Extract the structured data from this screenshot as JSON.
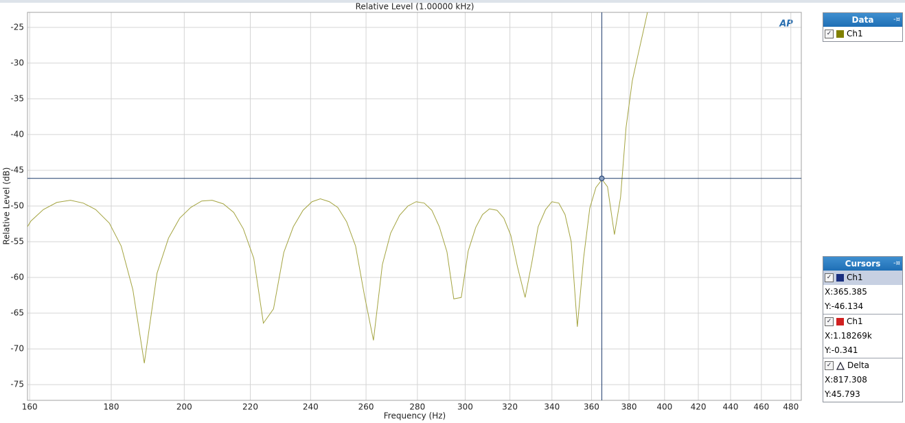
{
  "chart_data": {
    "type": "line",
    "title": "Relative Level (1.00000 kHz)",
    "x_label": "Frequency (Hz)",
    "y_label": "Relative Level (dB)",
    "log_x": true,
    "grid": true,
    "xlim": [
      159.5,
      487.3
    ],
    "ylim": [
      -77.2,
      -22.9
    ],
    "xticks": [
      160,
      180,
      200,
      220,
      240,
      260,
      280,
      300,
      320,
      340,
      360,
      380,
      400,
      420,
      440,
      460,
      480
    ],
    "yticks": [
      -25,
      -30,
      -35,
      -40,
      -45,
      -50,
      -55,
      -60,
      -65,
      -70,
      -75
    ],
    "x": [
      159.5,
      160.3,
      163.2,
      166.4,
      169.7,
      172.9,
      176.0,
      179.5,
      182.6,
      185.7,
      188.8,
      192.3,
      195.5,
      198.7,
      201.9,
      205.1,
      208.2,
      211.6,
      214.8,
      217.8,
      221.1,
      224.2,
      227.5,
      230.9,
      234.1,
      237.4,
      240.5,
      243.4,
      246.6,
      249.6,
      252.8,
      256.1,
      259.4,
      262.8,
      266.2,
      269.4,
      272.9,
      276.2,
      279.5,
      282.8,
      285.9,
      289.0,
      292.2,
      295.1,
      298.3,
      301.3,
      304.6,
      307.6,
      310.7,
      314.1,
      317.2,
      320.4,
      323.5,
      327.1,
      330.3,
      333.3,
      336.9,
      340.0,
      343.4,
      346.5,
      349.6,
      352.7,
      355.9,
      359.1,
      362.3,
      365.5,
      368.4,
      372.1,
      375.4,
      378.4,
      381.8,
      385.2,
      388.6,
      390.6
    ],
    "series": [
      {
        "name": "Ch1",
        "color": "#a3a33f",
        "values": [
          -52.9,
          -52.1,
          -50.5,
          -49.5,
          -49.2,
          -49.6,
          -50.5,
          -52.4,
          -55.6,
          -61.7,
          -72.0,
          -59.4,
          -54.5,
          -51.7,
          -50.2,
          -49.3,
          -49.2,
          -49.7,
          -50.9,
          -53.2,
          -57.3,
          -66.4,
          -64.4,
          -56.5,
          -52.9,
          -50.6,
          -49.4,
          -49.0,
          -49.4,
          -50.2,
          -52.2,
          -55.6,
          -62.5,
          -68.8,
          -58.2,
          -53.8,
          -51.3,
          -50.0,
          -49.4,
          -49.6,
          -50.6,
          -52.9,
          -56.4,
          -63.0,
          -62.8,
          -56.3,
          -53.0,
          -51.2,
          -50.4,
          -50.6,
          -51.7,
          -54.1,
          -58.5,
          -62.8,
          -57.9,
          -52.9,
          -50.5,
          -49.4,
          -49.6,
          -51.2,
          -55.0,
          -66.9,
          -57.3,
          -50.3,
          -47.4,
          -46.3,
          -47.3,
          -54.0,
          -48.8,
          -39.0,
          -32.5,
          -28.6,
          -24.8,
          -22.5
        ]
      }
    ],
    "cursor": {
      "x": 365.385,
      "y": -46.134,
      "color": "#1d3a6b"
    },
    "logo": "AP"
  },
  "data_panel": {
    "title": "Data",
    "items": [
      {
        "label": "Ch1",
        "color": "#808000"
      }
    ]
  },
  "cursors_panel": {
    "title": "Cursors",
    "items": [
      {
        "label": "Ch1",
        "color": "#1a2f80",
        "x": "X:365.385",
        "y": "Y:-46.134"
      },
      {
        "label": "Ch1",
        "color": "#d02020",
        "x": "X:1.18269k",
        "y": "Y:-0.341"
      },
      {
        "label": "Delta",
        "x": "X:817.308",
        "y": "Y:45.793"
      }
    ]
  }
}
